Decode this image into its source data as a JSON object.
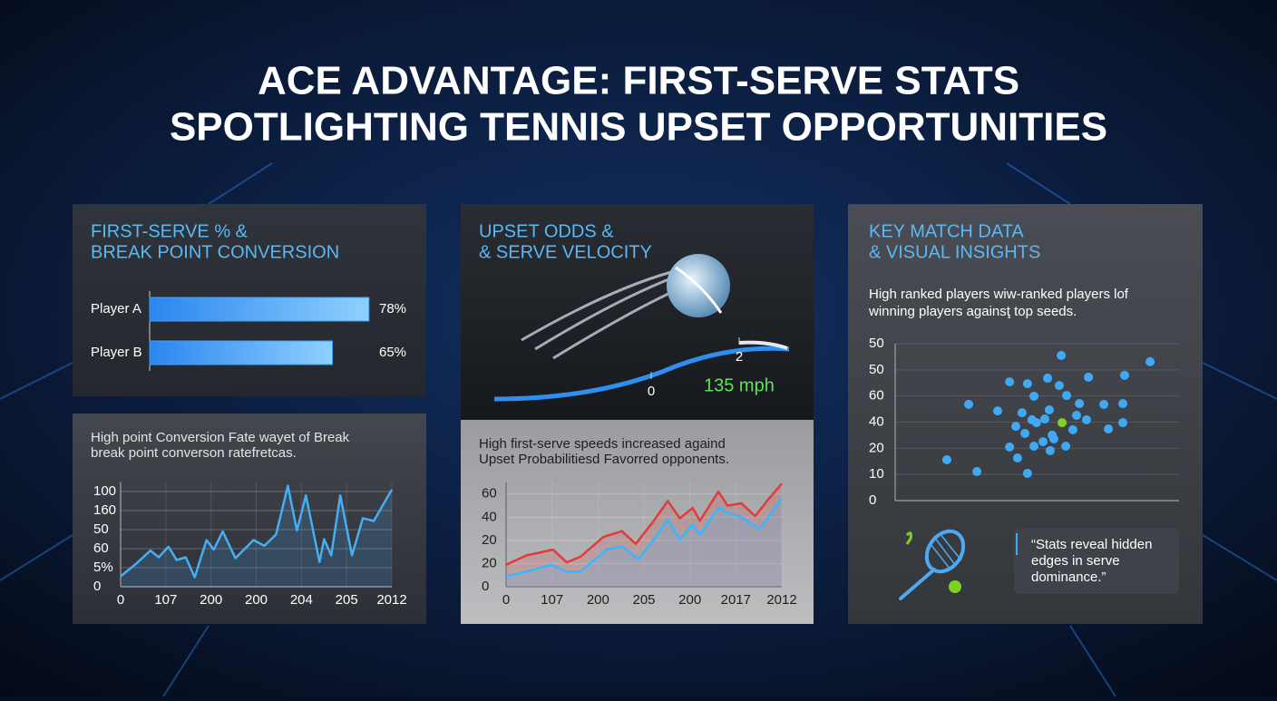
{
  "header": {
    "title": [
      "ACE ADVANTAGE: FIRST-SERVE STATS",
      "SPOTLIGHTING TENNIS UPSET OPPORTUNITIES"
    ]
  },
  "gauge_panel": {
    "title": [
      "UPSET ODDS &",
      "& SERVE VELOCITY"
    ],
    "scale_labels": [
      "0",
      "2"
    ],
    "speed": "135 mph"
  },
  "quote": [
    "“Stats reveal hidden",
    "edges in serve",
    "dominance.”"
  ],
  "chart_data": [
    {
      "type": "bar",
      "horizontal": true,
      "title": [
        "FIRST-SERVE % &",
        "BREAK POINT CONVERSION"
      ],
      "categories": [
        "Player A",
        "Player B"
      ],
      "values": [
        78,
        65
      ],
      "value_labels": [
        "78%",
        "65%"
      ],
      "color": "#3ea2f7"
    },
    {
      "type": "line",
      "title": [
        "High point Conversion Fate wayet of Break",
        "break point converson ratefretcas."
      ],
      "series": [
        {
          "color": "#45aef5",
          "x": [
            0,
            1.7,
            3.3,
            4.2,
            5.3,
            6.2,
            7.2,
            8.2,
            9.5,
            10.3,
            11.3,
            12.7,
            14.7,
            15.9,
            17.2,
            18.5,
            19.5,
            20.5,
            22,
            22.5,
            23.3,
            24.3,
            25.6,
            26.8,
            28,
            30
          ],
          "values": [
            11,
            24,
            38,
            31,
            42,
            28,
            31,
            10,
            49,
            39,
            58,
            30,
            49,
            43,
            55,
            106,
            59,
            96,
            26,
            50,
            33,
            96,
            33,
            72,
            69,
            102
          ]
        }
      ],
      "xlim": [
        0,
        30
      ],
      "xticks": [
        0,
        {
          "value": 5,
          "label": "107"
        },
        {
          "value": 10,
          "label": "200"
        },
        {
          "value": 15,
          "label": "200"
        },
        {
          "value": 20,
          "label": "204"
        },
        {
          "value": 25,
          "label": "205"
        },
        {
          "value": 30,
          "label": "2012"
        }
      ],
      "ylim": [
        0,
        110
      ],
      "yticks": [
        0,
        {
          "value": 20,
          "label": "5%"
        },
        {
          "value": 40,
          "label": "60"
        },
        {
          "value": 60,
          "label": "50"
        },
        {
          "value": 80,
          "label": "160"
        },
        100
      ],
      "grid": true
    },
    {
      "type": "line",
      "title": [
        "High first-serve speeds increased againd",
        "Upset Probabilitiesd Favorred opponents."
      ],
      "series": [
        {
          "color": "#e23b3b",
          "x": [
            0,
            2.2,
            5.1,
            6.6,
            8.1,
            10.6,
            12.6,
            14.1,
            15.9,
            17.6,
            18.9,
            20.3,
            21.1,
            23.1,
            24.1,
            25.6,
            27.1,
            28.6,
            30
          ],
          "values": [
            19,
            27,
            32,
            21,
            26,
            43,
            48,
            37,
            55,
            74,
            59,
            68,
            57,
            82,
            70,
            72,
            61,
            76,
            89
          ]
        },
        {
          "color": "#38b6ff",
          "x": [
            0,
            2.2,
            4.9,
            6.6,
            8.1,
            10.9,
            12.6,
            14.4,
            16.1,
            17.6,
            18.9,
            20.3,
            21.1,
            23.1,
            24.1,
            25.6,
            27.6,
            30
          ],
          "values": [
            9,
            13,
            19,
            13,
            13,
            32,
            35,
            24,
            41,
            58,
            41,
            54,
            45,
            68,
            64,
            60,
            50,
            76
          ]
        }
      ],
      "xlim": [
        0,
        30
      ],
      "xticks": [
        0,
        {
          "value": 5,
          "label": "107"
        },
        {
          "value": 10,
          "label": "200"
        },
        {
          "value": 15,
          "label": "205"
        },
        {
          "value": 20,
          "label": "200"
        },
        {
          "value": 25,
          "label": "2017"
        },
        {
          "value": 30,
          "label": "2012"
        }
      ],
      "ylim": [
        0,
        90
      ],
      "yticks": [
        0,
        20,
        {
          "value": 40,
          "label": "20"
        },
        {
          "value": 60,
          "label": "40"
        },
        {
          "value": 80,
          "label": "60"
        }
      ],
      "grid": true
    },
    {
      "type": "scatter",
      "title": [
        "KEY MATCH DATA",
        "& VISUAL INSIGHTS"
      ],
      "subtitle": [
        "High ranked players wiw-ranked players lof",
        "winning players againsţ top seeds."
      ],
      "series": [
        {
          "color": "#3fa9f5",
          "x": [
            18.2,
            25.9,
            28.8,
            36.1,
            40.3,
            40.3,
            42.5,
            43.1,
            44.7,
            45.7,
            46.6,
            46.6,
            48.2,
            48.9,
            48.9,
            49.8,
            52.1,
            52.7,
            53.7,
            54.3,
            55.3,
            54.6,
            55.9,
            57.8,
            58.5,
            60.1,
            60.4,
            62.6,
            63.9,
            64.9,
            67.4,
            68.1,
            73.5,
            75.1,
            80.2,
            80.2,
            80.8,
            89.8
          ],
          "values": [
            15.6,
            36.8,
            11.1,
            34.3,
            45.4,
            20.5,
            28.4,
            16.3,
            33.6,
            25.7,
            44.7,
            10.4,
            30.9,
            39.9,
            20.8,
            29.8,
            22.5,
            31.2,
            46.8,
            34.7,
            25,
            19.1,
            23.6,
            44,
            55.5,
            20.8,
            40.2,
            27.1,
            32.6,
            37.1,
            30.9,
            47.2,
            36.8,
            27.4,
            37.1,
            29.8,
            47.9,
            53.1
          ]
        },
        {
          "color": "#7ed321",
          "x": [
            58.8
          ],
          "values": [
            29.8
          ]
        }
      ],
      "xlim": [
        0,
        100
      ],
      "ylim": [
        0,
        60
      ],
      "yticks": [
        0,
        10,
        20,
        {
          "value": 30,
          "label": "40"
        },
        {
          "value": 40,
          "label": "60"
        },
        50,
        {
          "value": 60,
          "label": "50"
        }
      ],
      "grid": true
    }
  ]
}
